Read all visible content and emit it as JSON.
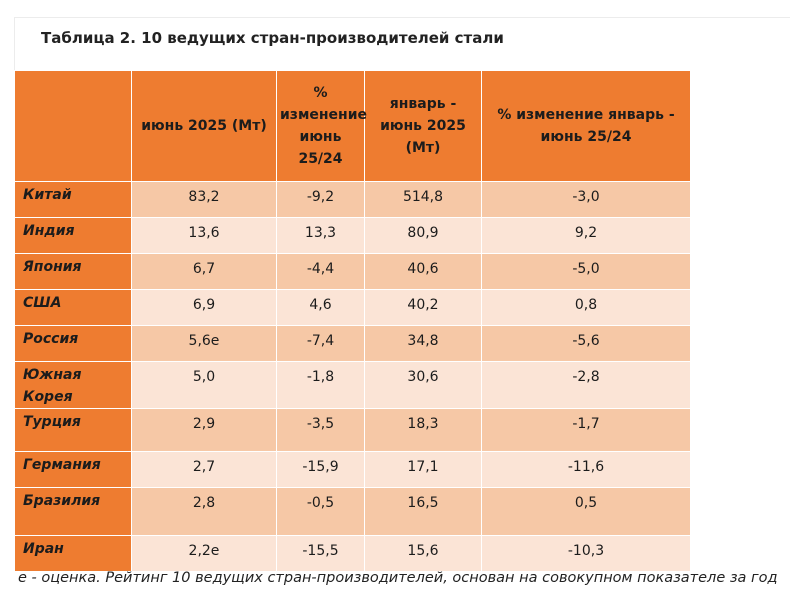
{
  "title": "Таблица 2. 10 ведущих стран-производителей стали",
  "columns": [
    "",
    "июнь 2025 (Мт)",
    "% изменение июнь 25/24",
    "январь - июнь 2025 (Мт)",
    "% изменение январь - июнь 25/24"
  ],
  "rows": [
    {
      "country": "Китай",
      "june": "83,2",
      "june_change": "-9,2",
      "ytd": "514,8",
      "ytd_change": "-3,0"
    },
    {
      "country": "Индия",
      "june": "13,6",
      "june_change": "13,3",
      "ytd": "80,9",
      "ytd_change": "9,2"
    },
    {
      "country": "Япония",
      "june": "6,7",
      "june_change": "-4,4",
      "ytd": "40,6",
      "ytd_change": "-5,0"
    },
    {
      "country": "США",
      "june": "6,9",
      "june_change": "4,6",
      "ytd": "40,2",
      "ytd_change": "0,8"
    },
    {
      "country": "Россия",
      "june": "5,6e",
      "june_change": "-7,4",
      "ytd": "34,8",
      "ytd_change": "-5,6"
    },
    {
      "country": "Южная Корея",
      "june": "5,0",
      "june_change": "-1,8",
      "ytd": "30,6",
      "ytd_change": "-2,8"
    },
    {
      "country": "Турция",
      "june": "2,9",
      "june_change": "-3,5",
      "ytd": "18,3",
      "ytd_change": "-1,7"
    },
    {
      "country": "Германия",
      "june": "2,7",
      "june_change": "-15,9",
      "ytd": "17,1",
      "ytd_change": "-11,6"
    },
    {
      "country": "Бразилия",
      "june": "2,8",
      "june_change": "-0,5",
      "ytd": "16,5",
      "ytd_change": "0,5"
    },
    {
      "country": "Иран",
      "june": "2,2e",
      "june_change": "-15,5",
      "ytd": "15,6",
      "ytd_change": "-10,3"
    }
  ],
  "footnote": "e - оценка. Рейтинг 10 ведущих стран-производителей, основан на совокупном показателе за год",
  "colors": {
    "header": "#ee7c30",
    "row_dark": "#f6c8a6",
    "row_light": "#fbe4d6"
  }
}
